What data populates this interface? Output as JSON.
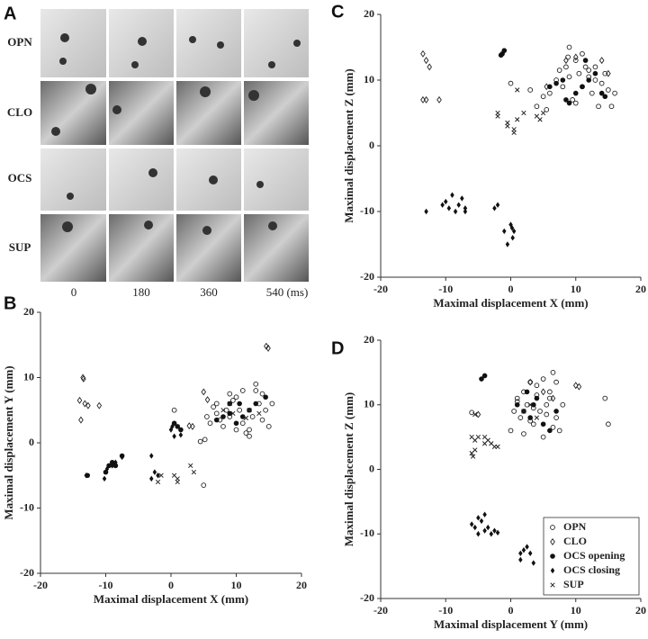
{
  "panel_labels": [
    "A",
    "B",
    "C",
    "D"
  ],
  "panel_a": {
    "rows": [
      "OPN",
      "CLO",
      "OCS",
      "SUP"
    ],
    "columns": [
      "0",
      "180",
      "360",
      "540 (ms)"
    ]
  },
  "chart_data": [
    {
      "type": "scatter",
      "xlabel": "Maximal displacement X (mm)",
      "ylabel": "Maximal displacement Y (mm)",
      "xlim": [
        -20,
        20
      ],
      "ylim": [
        -20,
        20
      ],
      "xticks": [
        -20,
        -10,
        0,
        10,
        20
      ],
      "yticks": [
        -20,
        -10,
        0,
        10,
        20
      ],
      "series": [
        {
          "marker": "circle-open",
          "x": [
            0.5,
            5,
            4.5,
            5.2,
            5.5,
            6,
            6.5,
            7,
            7.5,
            8,
            8.5,
            9,
            9.5,
            10,
            10.5,
            11,
            11.5,
            12,
            12.5,
            13,
            13.5,
            14,
            14.5,
            15,
            15.5,
            11,
            12,
            9,
            7,
            13,
            14,
            10
          ],
          "y": [
            5,
            -6.5,
            0.2,
            0.5,
            4,
            3,
            5.5,
            6,
            3.5,
            2.5,
            5,
            4,
            6.5,
            7,
            5,
            3,
            1.5,
            2,
            4,
            8,
            6,
            7.5,
            5,
            2.5,
            6,
            8,
            1,
            7.5,
            4.5,
            9,
            3.5,
            2
          ],
          "color": "#222"
        },
        {
          "marker": "diamond-open",
          "x": [
            -13.5,
            -13.4,
            -14,
            -13.2,
            -12.7,
            -13.8,
            -11,
            14.6,
            14.9,
            5,
            5.6,
            3.3,
            2.8
          ],
          "y": [
            10,
            9.8,
            6.5,
            6,
            5.7,
            3.5,
            5.7,
            14.8,
            14.5,
            7.8,
            6.6,
            2.5,
            2.6
          ],
          "color": "#222"
        },
        {
          "marker": "circle-filled",
          "x": [
            -12.8,
            -10,
            -9.5,
            -9,
            -8.5,
            -7.5,
            0.5,
            1,
            1.5,
            7,
            8,
            9,
            10,
            11,
            12,
            13,
            14.5,
            10.5,
            9
          ],
          "y": [
            -5,
            -4.5,
            -3.5,
            -3,
            -3.5,
            -2,
            3,
            2.5,
            2,
            3.5,
            4,
            4.5,
            3,
            4,
            5,
            6,
            7,
            6,
            6
          ],
          "color": "#111"
        },
        {
          "marker": "diamond-filled",
          "x": [
            -13,
            -10.2,
            -9.8,
            -9,
            -8.5,
            -7.5,
            -3,
            -2.5,
            -2,
            -3,
            0,
            0.5,
            0.2,
            1.5
          ],
          "y": [
            -5,
            -5.5,
            -4,
            -3.5,
            -3,
            -2.2,
            -2,
            -4.5,
            -5,
            -5.5,
            2,
            1,
            2.5,
            1.2
          ],
          "color": "#111"
        },
        {
          "marker": "cross",
          "x": [
            -2,
            -1.5,
            0.5,
            1,
            1,
            3,
            3.5,
            8,
            9,
            9.5,
            12,
            13.5,
            11.5
          ],
          "y": [
            -6,
            -5,
            -5,
            -5.5,
            -6,
            -3.5,
            -4.5,
            5,
            6,
            4.5,
            5,
            4.5,
            3.8
          ],
          "color": "#222"
        }
      ]
    },
    {
      "type": "scatter",
      "xlabel": "Maximal displacement X (mm)",
      "ylabel": "Maximal displacement Z (mm)",
      "xlim": [
        -20,
        20
      ],
      "ylim": [
        -20,
        20
      ],
      "xticks": [
        -20,
        -10,
        0,
        10,
        20
      ],
      "yticks": [
        -20,
        -10,
        0,
        10,
        20
      ],
      "series": [
        {
          "marker": "circle-open",
          "x": [
            0,
            3,
            4,
            5,
            5.5,
            6,
            7,
            7.5,
            8,
            8.5,
            9,
            9.5,
            10,
            10.5,
            11,
            11.5,
            12,
            12.5,
            13,
            13.5,
            14,
            14.5,
            15,
            15.5,
            9,
            11,
            12,
            10,
            13,
            8.8,
            16
          ],
          "y": [
            9.5,
            8.5,
            6,
            7.5,
            5.5,
            8,
            10,
            11.5,
            9,
            12,
            15,
            7,
            13,
            11,
            9,
            12,
            10.5,
            8,
            12,
            6,
            9.5,
            11,
            8.5,
            6,
            10.5,
            14,
            11.5,
            6.5,
            10,
            13.5,
            8
          ],
          "color": "#222"
        },
        {
          "marker": "diamond-open",
          "x": [
            -13.5,
            -13,
            -12.5,
            -13.5,
            -13,
            -11,
            5.5,
            8.5,
            10,
            14,
            15
          ],
          "y": [
            14,
            13,
            12,
            7,
            7,
            7,
            9,
            13,
            13.5,
            13,
            11
          ],
          "color": "#222"
        },
        {
          "marker": "circle-filled",
          "x": [
            -1.5,
            -1,
            -1.3,
            6,
            7,
            8,
            8.5,
            9,
            10,
            11,
            11.5,
            12,
            13,
            14,
            14.5
          ],
          "y": [
            13.8,
            14.5,
            14,
            9,
            9.5,
            10,
            7,
            6.5,
            8,
            9,
            13,
            10,
            11,
            8,
            7.5
          ],
          "color": "#111"
        },
        {
          "marker": "diamond-filled",
          "x": [
            -13,
            -10.5,
            -10,
            -9.5,
            -9,
            -8.5,
            -8,
            -7.5,
            -7,
            -7,
            -2.5,
            -2,
            -1,
            -0.5,
            0,
            0.3,
            0.5,
            0.2
          ],
          "y": [
            -10,
            -9,
            -8.5,
            -9.5,
            -7.5,
            -10,
            -9,
            -8,
            -10,
            -9.5,
            -9.5,
            -9,
            -13,
            -15,
            -12,
            -14,
            -13,
            -12.5
          ],
          "color": "#111"
        },
        {
          "marker": "cross",
          "x": [
            -2,
            -2,
            -0.5,
            0.5,
            0.5,
            1,
            1,
            2,
            4,
            4.5,
            5,
            -0.5
          ],
          "y": [
            5,
            4.5,
            3.5,
            2.5,
            2,
            4,
            8.5,
            5,
            4.5,
            4,
            5,
            3
          ],
          "color": "#222"
        }
      ]
    },
    {
      "type": "scatter",
      "xlabel": "Maximal displacement Y (mm)",
      "ylabel": "Maximal displacement Z (mm)",
      "xlim": [
        -20,
        20
      ],
      "ylim": [
        -20,
        20
      ],
      "xticks": [
        -20,
        -10,
        0,
        10,
        20
      ],
      "yticks": [
        -20,
        -10,
        0,
        10,
        20
      ],
      "legend": "lower right",
      "series": [
        {
          "name": "OPN",
          "marker": "circle-open",
          "x": [
            -6,
            0,
            0.5,
            1,
            1.5,
            2,
            2.5,
            3,
            3.5,
            4,
            4.5,
            5,
            5.5,
            6,
            6.5,
            7,
            7.5,
            8,
            2,
            3,
            4,
            5,
            6,
            1,
            7,
            14.5,
            15,
            3.5,
            5.5,
            6.5
          ],
          "y": [
            8.8,
            6,
            9,
            11,
            8,
            12,
            10,
            13.5,
            7,
            11.5,
            9,
            14,
            10,
            12,
            15,
            8,
            6,
            10,
            5.5,
            7.5,
            13,
            5,
            11,
            10.5,
            13.5,
            11,
            7,
            9.5,
            8.5,
            6.5
          ],
          "color": "#222"
        },
        {
          "name": "CLO",
          "marker": "diamond-open",
          "x": [
            10,
            10.5,
            5,
            3,
            6.5,
            -5
          ],
          "y": [
            13,
            12.8,
            12,
            13.5,
            11,
            8.5
          ],
          "color": "#222"
        },
        {
          "name": "OCS opening",
          "marker": "circle-filled",
          "x": [
            -4.5,
            -4,
            1,
            2,
            3,
            4,
            5,
            6,
            7,
            3.5,
            2.5
          ],
          "y": [
            14,
            14.5,
            10,
            9,
            8,
            11,
            7,
            6,
            9,
            10,
            12
          ],
          "color": "#111"
        },
        {
          "name": "OCS closing",
          "marker": "diamond-filled",
          "x": [
            -6,
            -5.5,
            -5,
            -4.5,
            -4,
            -4,
            -3.5,
            -3,
            -2.5,
            -2,
            -5,
            1.5,
            1.5,
            2,
            2.5,
            3,
            3.5
          ],
          "y": [
            -8.5,
            -9,
            -7.5,
            -8,
            -7,
            -9.5,
            -9,
            -10,
            -9.5,
            -9.8,
            -10,
            -13,
            -14,
            -12.5,
            -12,
            -13,
            -14.5
          ],
          "color": "#111"
        },
        {
          "name": "SUP",
          "marker": "cross",
          "x": [
            -5.5,
            -6,
            -5.5,
            -5,
            -4,
            -4,
            -3.5,
            -3,
            -2.5,
            -2,
            -6,
            -5.8,
            -5.5,
            2,
            3,
            4
          ],
          "y": [
            8.5,
            5,
            4.5,
            5,
            5,
            4,
            4.5,
            4,
            3.5,
            3.5,
            2.5,
            2,
            3,
            9,
            10,
            8
          ],
          "color": "#222"
        }
      ]
    }
  ]
}
